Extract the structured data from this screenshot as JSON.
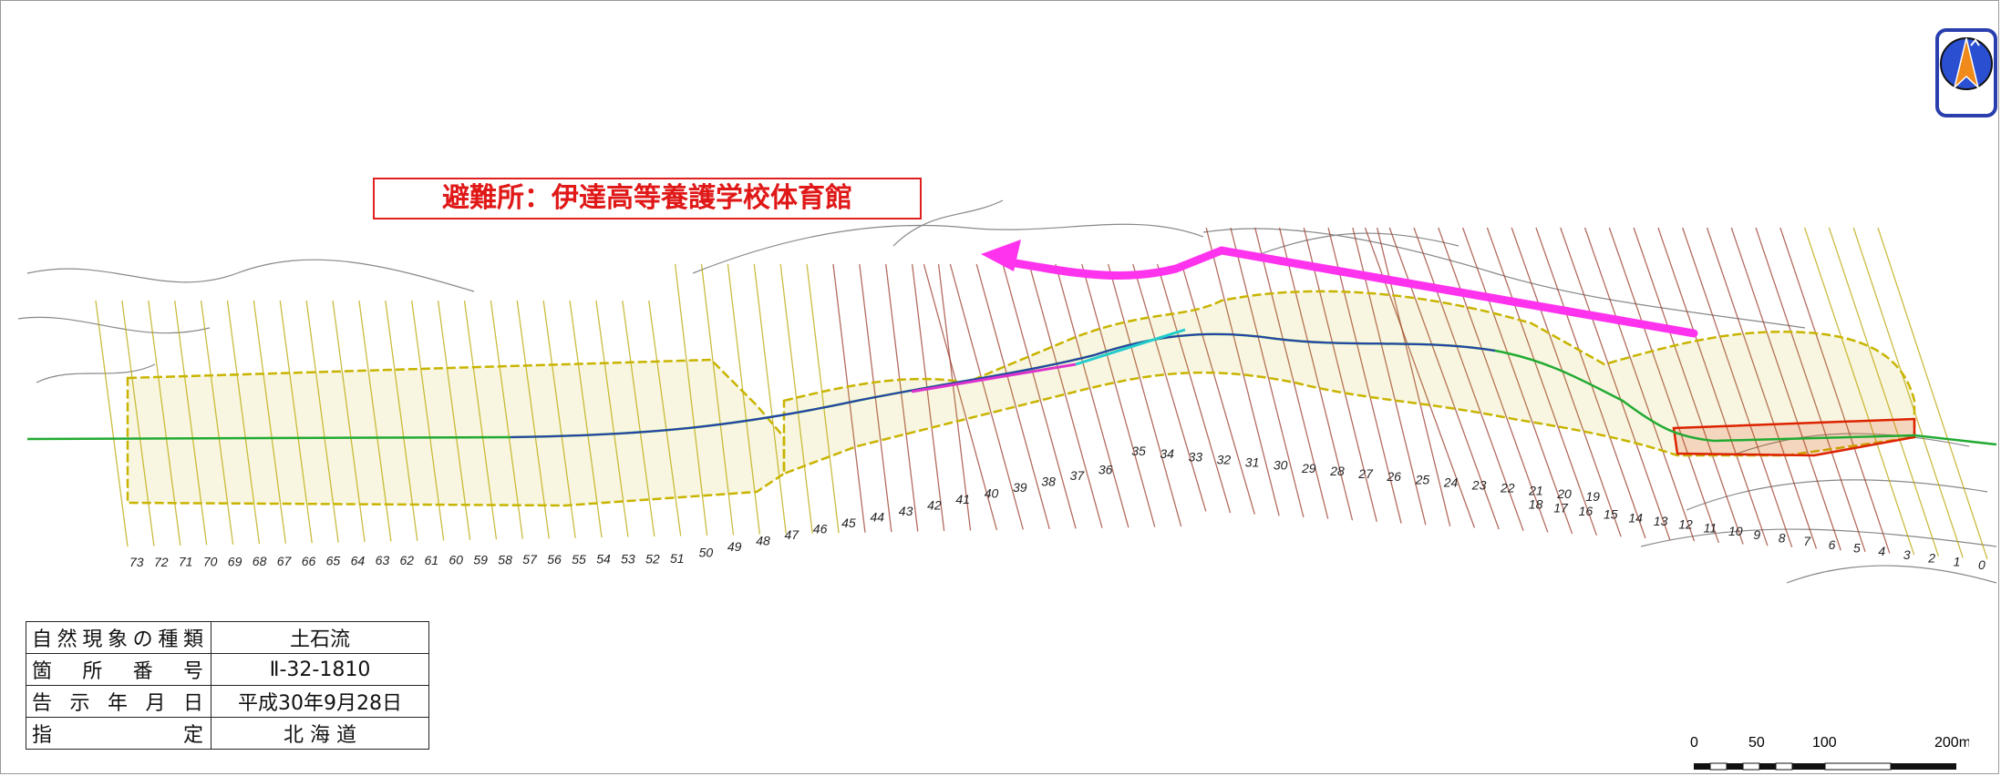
{
  "shelter": {
    "label": "避難所：伊達高等養護学校体育館"
  },
  "info_table": {
    "rows": [
      {
        "label": "自然現象の種類",
        "value": "土石流"
      },
      {
        "label": "箇 所 番 号",
        "value": "Ⅱ-32-1810"
      },
      {
        "label": "告 示 年 月 日",
        "value": "平成30年9月28日"
      },
      {
        "label": "指　　　　定",
        "value": "北 海 道"
      }
    ]
  },
  "scale": {
    "ticks": [
      "0",
      "50",
      "100",
      "200m"
    ]
  },
  "section_numbers": [
    "73",
    "72",
    "71",
    "70",
    "69",
    "68",
    "67",
    "66",
    "65",
    "64",
    "63",
    "62",
    "61",
    "60",
    "59",
    "58",
    "57",
    "56",
    "55",
    "54",
    "53",
    "52",
    "51",
    "50",
    "49",
    "48",
    "47",
    "46",
    "45",
    "44",
    "43",
    "42",
    "41",
    "40",
    "39",
    "38",
    "37",
    "36",
    "35",
    "34",
    "33",
    "32",
    "31",
    "30",
    "29",
    "28",
    "27",
    "26",
    "25",
    "24",
    "23",
    "22",
    "21",
    "20",
    "19",
    "18",
    "17",
    "16",
    "15",
    "14",
    "13",
    "12",
    "11",
    "10",
    "9",
    "8",
    "7",
    "6",
    "5",
    "4",
    "3",
    "2",
    "1",
    "0"
  ],
  "colors": {
    "shelter_text": "#e01818",
    "evacuation_arrow": "#ff33ee",
    "hazard_zone": "#c8b400",
    "special_zone": "#dd2200",
    "stream": "#2a3fae",
    "section_lines": "#9a3a2a"
  },
  "icons": {
    "north": "north-arrow-icon"
  }
}
